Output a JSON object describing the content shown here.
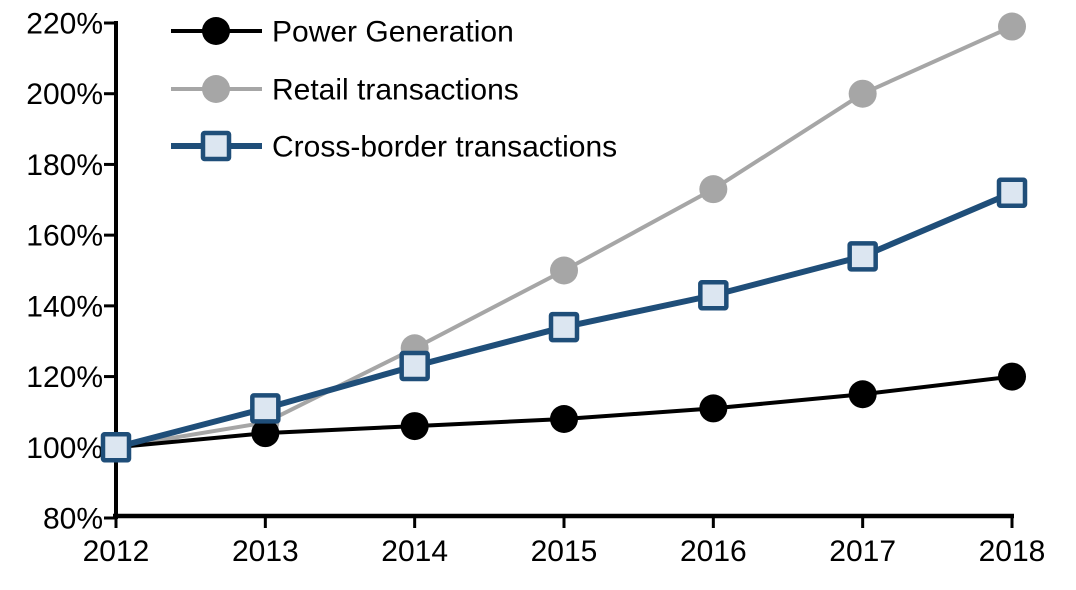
{
  "chart_data": {
    "type": "line",
    "title": "",
    "xlabel": "",
    "ylabel": "",
    "categories": [
      "2012",
      "2013",
      "2014",
      "2015",
      "2016",
      "2017",
      "2018"
    ],
    "series": [
      {
        "name": "Power Generation",
        "values": [
          100,
          104,
          106,
          108,
          111,
          115,
          120
        ],
        "color": "#000000",
        "marker": "circle",
        "marker_fill": "#000000",
        "line_width": 4,
        "draw_order": 2
      },
      {
        "name": "Retail transactions",
        "values": [
          100,
          107,
          128,
          150,
          173,
          200,
          219
        ],
        "color": "#A6A6A6",
        "marker": "circle",
        "marker_fill": "#A6A6A6",
        "line_width": 4,
        "draw_order": 1
      },
      {
        "name": "Cross-border transactions",
        "values": [
          100,
          111,
          123,
          134,
          143,
          154,
          172
        ],
        "color": "#1F4E79",
        "marker": "square",
        "marker_fill": "#DCE6F1",
        "line_width": 6,
        "draw_order": 3
      }
    ],
    "ylim": [
      80,
      220
    ],
    "ytick_step": 20,
    "ytick_suffix": "%",
    "grid": false,
    "legend_position": "top-left",
    "axis_color": "#000000",
    "text_color": "#000000",
    "background": "#FFFFFF"
  }
}
